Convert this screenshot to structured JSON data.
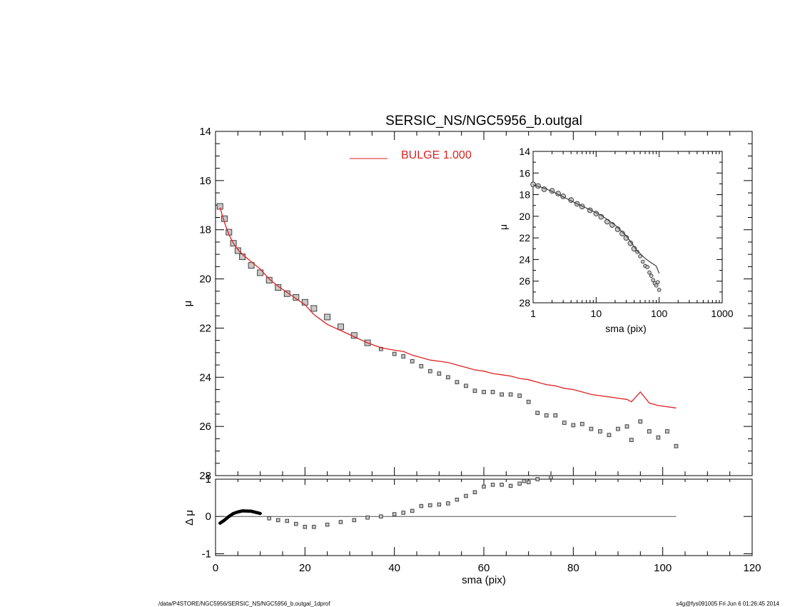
{
  "chart_data": [
    {
      "type": "scatter",
      "panel": "main profile",
      "title": "SERSIC_NS/NGC5956_b.outgal",
      "xlabel": "",
      "ylabel": "μ",
      "xlim": [
        0,
        120
      ],
      "ylim": [
        28,
        14
      ],
      "y_inverted": true,
      "xticks": [
        0,
        20,
        40,
        60,
        80,
        100,
        120
      ],
      "yticks": [
        14,
        16,
        18,
        20,
        22,
        24,
        26,
        28
      ],
      "legend": {
        "placement": "top-center",
        "entries": [
          {
            "label": "BULGE  1.000",
            "color": "#dd2222"
          }
        ]
      },
      "series": [
        {
          "name": "BULGE  1.000",
          "kind": "line",
          "color": "#dd2222",
          "x": [
            1,
            2,
            3,
            4,
            5,
            6,
            8,
            10,
            12,
            14,
            16,
            18,
            20,
            22,
            25,
            28,
            31,
            34,
            37,
            40,
            42,
            44,
            46,
            48,
            50,
            52,
            54,
            56,
            58,
            60,
            62,
            64,
            66,
            68,
            70,
            72,
            74,
            76,
            78,
            80,
            82,
            84,
            86,
            88,
            90,
            92,
            93,
            95,
            97,
            99,
            101,
            103
          ],
          "y": [
            17.1,
            17.7,
            18.2,
            18.55,
            18.8,
            19.0,
            19.3,
            19.6,
            20.0,
            20.3,
            20.55,
            20.8,
            21.05,
            21.45,
            21.85,
            22.1,
            22.35,
            22.6,
            22.8,
            22.9,
            22.95,
            23.1,
            23.2,
            23.3,
            23.35,
            23.4,
            23.5,
            23.6,
            23.7,
            23.75,
            23.85,
            23.9,
            23.95,
            24.05,
            24.1,
            24.2,
            24.3,
            24.35,
            24.45,
            24.5,
            24.6,
            24.7,
            24.75,
            24.8,
            24.85,
            24.9,
            25.0,
            24.6,
            25.05,
            25.15,
            25.2,
            25.25
          ]
        },
        {
          "name": "",
          "kind": "points",
          "marker": "square",
          "x": [
            1,
            2,
            3,
            4,
            5,
            6,
            8,
            10,
            12,
            14,
            16,
            18,
            20,
            22,
            25,
            28,
            31,
            34,
            37,
            40,
            42,
            44,
            46,
            48,
            50,
            52,
            54,
            56,
            58,
            60,
            62,
            64,
            66,
            68,
            70,
            72,
            74,
            76,
            78,
            80,
            82,
            84,
            86,
            88,
            90,
            92,
            93,
            95,
            97,
            99,
            101,
            103
          ],
          "y": [
            17.05,
            17.55,
            18.1,
            18.55,
            18.85,
            19.1,
            19.45,
            19.75,
            20.05,
            20.35,
            20.6,
            20.75,
            20.95,
            21.2,
            21.55,
            21.95,
            22.3,
            22.6,
            22.85,
            23.05,
            23.15,
            23.35,
            23.55,
            23.75,
            23.85,
            24.0,
            24.2,
            24.35,
            24.55,
            24.6,
            24.6,
            24.7,
            24.7,
            24.75,
            25.0,
            25.45,
            25.55,
            25.55,
            25.85,
            25.95,
            25.9,
            26.1,
            26.2,
            26.35,
            26.1,
            26.0,
            26.55,
            25.8,
            26.2,
            26.45,
            26.2,
            26.8
          ]
        }
      ]
    },
    {
      "type": "scatter",
      "panel": "residuals",
      "xlabel": "sma (pix)",
      "ylabel": "Δ μ",
      "xlim": [
        0,
        120
      ],
      "ylim": [
        -1.05,
        1.0
      ],
      "xticks": [
        0,
        20,
        40,
        60,
        80,
        100,
        120
      ],
      "yticks": [
        -1,
        0,
        1
      ],
      "series": [
        {
          "name": "",
          "kind": "zero-line",
          "x": [
            1,
            103
          ],
          "y": [
            0,
            0
          ]
        },
        {
          "name": "",
          "kind": "points",
          "marker": "square",
          "x": [
            1,
            2,
            3,
            4,
            5,
            6,
            8,
            10,
            12,
            14,
            16,
            18,
            20,
            22,
            25,
            28,
            31,
            34,
            37,
            40,
            42,
            44,
            46,
            48,
            50,
            52,
            54,
            56,
            58,
            60,
            62,
            64,
            66,
            68,
            69,
            70,
            72,
            75
          ],
          "y": [
            -0.18,
            -0.1,
            0.0,
            0.08,
            0.12,
            0.15,
            0.14,
            0.08,
            -0.05,
            -0.1,
            -0.12,
            -0.2,
            -0.28,
            -0.28,
            -0.22,
            -0.15,
            -0.1,
            -0.03,
            0.0,
            0.06,
            0.1,
            0.15,
            0.28,
            0.3,
            0.32,
            0.35,
            0.45,
            0.55,
            0.65,
            0.8,
            0.85,
            0.85,
            0.82,
            0.88,
            0.95,
            0.92,
            1.0,
            1.05
          ]
        }
      ]
    },
    {
      "type": "scatter",
      "panel": "inset (log scale)",
      "xlabel": "sma (pix)",
      "ylabel": "μ",
      "x_scale": "log",
      "xlim": [
        1,
        1000
      ],
      "ylim": [
        28,
        14
      ],
      "y_inverted": true,
      "xticks": [
        1,
        10,
        100,
        1000
      ],
      "yticks": [
        14,
        16,
        18,
        20,
        22,
        24,
        26,
        28
      ],
      "series": [
        {
          "name": "",
          "kind": "line",
          "color": "#333333",
          "x": [
            1,
            1.5,
            2,
            3,
            5,
            8,
            12,
            20,
            30,
            45,
            60,
            75,
            90,
            100
          ],
          "y": [
            17.1,
            17.4,
            17.7,
            18.2,
            18.85,
            19.4,
            19.9,
            20.8,
            21.8,
            23.2,
            23.9,
            24.3,
            24.6,
            25.3
          ]
        },
        {
          "name": "",
          "kind": "points",
          "marker": "circle",
          "x": [
            1,
            1.2,
            1.5,
            2,
            2.5,
            3,
            4,
            5,
            6,
            8,
            10,
            12,
            15,
            18,
            22,
            26,
            30,
            35,
            40,
            45,
            50,
            55,
            60,
            65,
            70,
            75,
            80,
            85,
            90,
            95,
            100
          ],
          "y": [
            17.05,
            17.2,
            17.5,
            17.65,
            17.9,
            18.15,
            18.5,
            18.85,
            19.1,
            19.45,
            19.75,
            20.05,
            20.5,
            20.8,
            21.2,
            21.6,
            22.0,
            22.5,
            23.0,
            23.3,
            23.7,
            24.2,
            24.6,
            24.7,
            25.2,
            25.5,
            25.9,
            26.2,
            26.4,
            26.1,
            26.8
          ]
        }
      ]
    }
  ],
  "footer": {
    "left": "/data/P4STORE/NGC5956/SERSIC_NS/NGC5956_b.outgal_1dprof",
    "right": "s4g@fys091005  Fri Jun  6 01:26:45 2014"
  }
}
